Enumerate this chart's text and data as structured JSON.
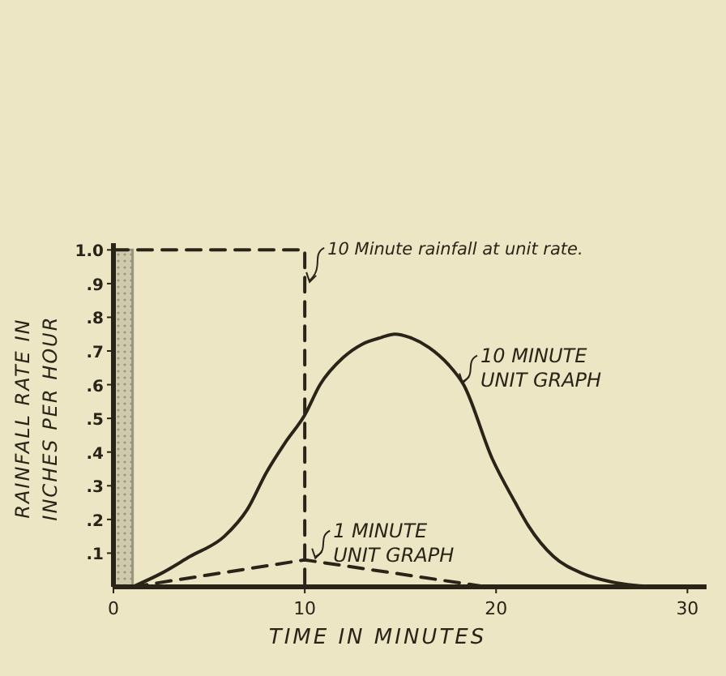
{
  "chart_data": {
    "type": "line",
    "xlabel": "TIME IN MINUTES",
    "ylabel": "RAINFALL RATE IN INCHES PER HOUR",
    "xlim": [
      0,
      31
    ],
    "ylim": [
      0,
      1.02
    ],
    "xticks": [
      0,
      10,
      20,
      30
    ],
    "yticks": [
      {
        "value": 0.1,
        "label": ".1"
      },
      {
        "value": 0.2,
        "label": ".2"
      },
      {
        "value": 0.3,
        "label": ".3"
      },
      {
        "value": 0.4,
        "label": ".4"
      },
      {
        "value": 0.5,
        "label": ".5"
      },
      {
        "value": 0.6,
        "label": ".6"
      },
      {
        "value": 0.7,
        "label": ".7"
      },
      {
        "value": 0.8,
        "label": ".8"
      },
      {
        "value": 0.9,
        "label": ".9"
      },
      {
        "value": 1.0,
        "label": "1.0"
      }
    ],
    "grid": false,
    "marker": "none",
    "series": [
      {
        "type": "area",
        "color": "#9a9580",
        "x": [
          0,
          1
        ],
        "values": [
          1,
          1
        ]
      },
      {
        "line_style": "dashed",
        "color": "#2a2418",
        "x": [
          0,
          10,
          10
        ],
        "values": [
          1,
          1,
          0
        ]
      },
      {
        "line_style": "solid",
        "color": "#2a2418",
        "x": [
          1,
          2.5,
          4,
          5.8,
          7,
          8,
          9,
          10,
          10.8,
          12,
          13,
          14,
          14.7,
          15.5,
          16.5,
          17.5,
          18.3,
          19.8,
          21,
          21.7,
          23,
          24.5,
          26,
          27.5,
          28.5
        ],
        "values": [
          0,
          0.04,
          0.09,
          0.15,
          0.23,
          0.34,
          0.43,
          0.51,
          0.6,
          0.68,
          0.72,
          0.74,
          0.75,
          0.74,
          0.71,
          0.66,
          0.6,
          0.38,
          0.25,
          0.18,
          0.09,
          0.04,
          0.015,
          0.003,
          0
        ]
      },
      {
        "line_style": "dashed",
        "color": "#2a2418",
        "x": [
          1,
          10,
          19.5
        ],
        "values": [
          0,
          0.08,
          0
        ]
      }
    ],
    "annotations": [
      {
        "text": "10 Minute rainfall at unit rate.",
        "x": 10,
        "y": 0.9
      },
      {
        "text": "10 MINUTE UNIT GRAPH",
        "x": 18,
        "y": 0.6
      },
      {
        "text": "1 MINUTE UNIT GRAPH",
        "x": 10.3,
        "y": 0.08
      }
    ]
  }
}
